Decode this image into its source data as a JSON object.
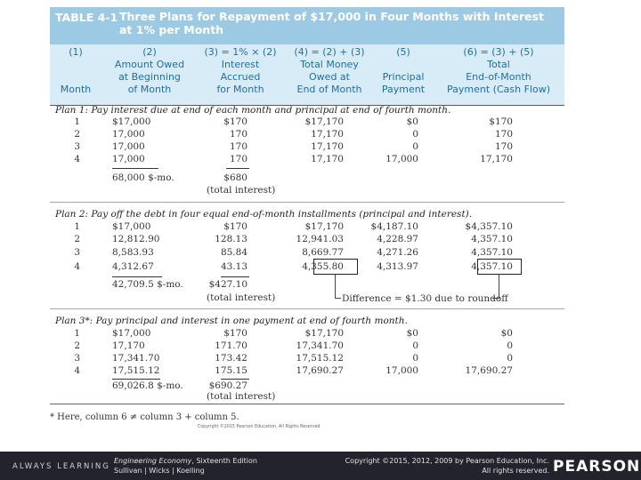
{
  "table": {
    "label": "TABLE 4-1",
    "title_line1": "Three Plans for Repayment of $17,000 in Four Months with Interest",
    "title_line2": "at 1% per Month"
  },
  "headers": [
    {
      "lines": [
        "(1)",
        "",
        "",
        "Month"
      ]
    },
    {
      "lines": [
        "(2)",
        "Amount Owed",
        "at Beginning",
        "of Month"
      ]
    },
    {
      "lines": [
        "(3) = 1% × (2)",
        "Interest",
        "Accrued",
        "for Month"
      ]
    },
    {
      "lines": [
        "(4) = (2) + (3)",
        "Total Money",
        "Owed at",
        "End of Month"
      ]
    },
    {
      "lines": [
        "(5)",
        "",
        "Principal",
        "Payment"
      ]
    },
    {
      "lines": [
        "(6) = (3) + (5)",
        "Total",
        "End-of-Month",
        "Payment (Cash Flow)"
      ]
    }
  ],
  "plans": [
    {
      "title": "Plan 1: Pay interest due at end of each month and principal at end of fourth month.",
      "rows": [
        [
          "1",
          "$17,000",
          "$170",
          "$17,170",
          "$0",
          "$170"
        ],
        [
          "2",
          "17,000",
          "170",
          "17,170",
          "0",
          "170"
        ],
        [
          "3",
          "17,000",
          "170",
          "17,170",
          "0",
          "170"
        ],
        [
          "4",
          "17,000",
          "170",
          "17,170",
          "17,000",
          "17,170"
        ]
      ],
      "sum_col2": "68,000 $-mo.",
      "sum_col3": "$680",
      "sum_col3_note": "(total interest)"
    },
    {
      "title": "Plan 2: Pay off the debt in four equal end-of-month installments (principal and interest).",
      "rows": [
        [
          "1",
          "$17,000",
          "$170",
          "$17,170",
          "$4,187.10",
          "$4,357.10"
        ],
        [
          "2",
          "12,812.90",
          "128.13",
          "12,941.03",
          "4,228.97",
          "4,357.10"
        ],
        [
          "3",
          "8,583.93",
          "85.84",
          "8,669.77",
          "4,271.26",
          "4,357.10"
        ],
        [
          "4",
          "4,312.67",
          "43.13",
          "4,355.80",
          "4,313.97",
          "4,357.10"
        ]
      ],
      "sum_col2": "42,709.5 $-mo.",
      "sum_col3": "$427.10",
      "sum_col3_note": "(total interest)",
      "difference_note": "Difference = $1.30 due to roundoff"
    },
    {
      "title": "Plan 3*: Pay principal and interest in one payment at end of fourth month.",
      "rows": [
        [
          "1",
          "$17,000",
          "$170",
          "$17,170",
          "$0",
          "$0"
        ],
        [
          "2",
          "17,170",
          "171.70",
          "17,341.70",
          "0",
          "0"
        ],
        [
          "3",
          "17,341.70",
          "173.42",
          "17,515.12",
          "0",
          "0"
        ],
        [
          "4",
          "17,515.12",
          "175.15",
          "17,690.27",
          "17,000",
          "17,690.27"
        ]
      ],
      "sum_col2": "69,026.8 $-mo.",
      "sum_col3": "$690.27",
      "sum_col3_note": "(total interest)"
    }
  ],
  "footnote": "* Here, column 6 ≠ column 3 + column 5.",
  "table_copyright": "Copyright ©2015 Pearson Education, All Rights Reserved",
  "footer": {
    "always_learning": "ALWAYS LEARNING",
    "book_title": "Engineering Economy",
    "book_edition": ", Sixteenth Edition",
    "authors": "Sullivan | Wicks | Koelling",
    "copyright_line1": "Copyright ©2015, 2012, 2009 by Pearson Education, Inc.",
    "copyright_line2": "All rights reserved.",
    "logo": "PEARSON"
  }
}
